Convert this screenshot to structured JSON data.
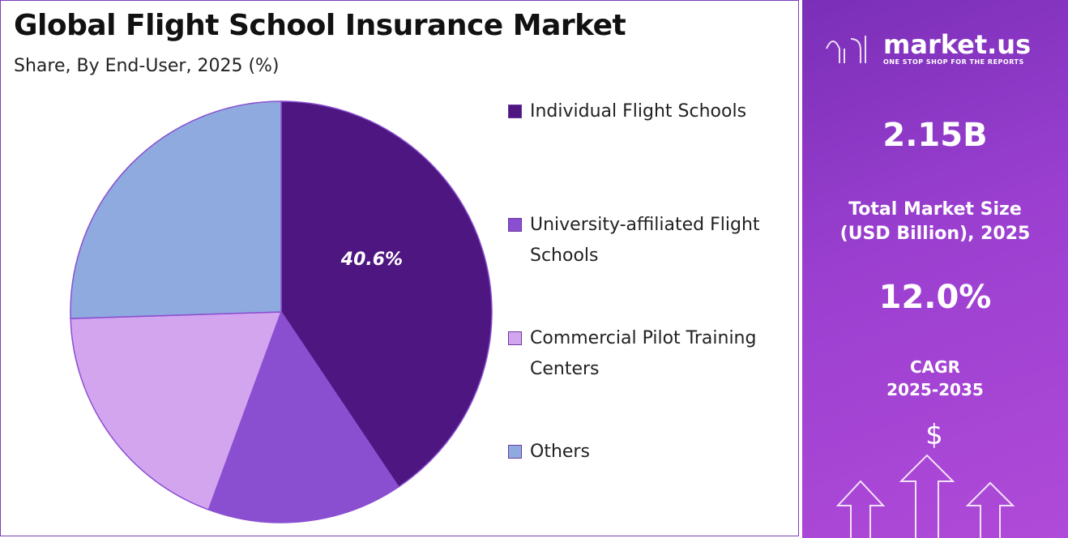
{
  "chart_data": {
    "type": "pie",
    "title": "Global Flight School Insurance Market",
    "subtitle": "Share, By End-User, 2025 (%)",
    "categories": [
      "Individual Flight Schools",
      "University-affiliated Flight Schools",
      "Commercial Pilot Training Centers",
      "Others"
    ],
    "values": [
      40.6,
      15.0,
      18.9,
      25.5
    ],
    "value_labels": [
      "40.6%",
      null,
      null,
      null
    ],
    "colors": [
      "#4e1680",
      "#8a4fd0",
      "#d4a5ef",
      "#8eaadf"
    ]
  },
  "sidebar": {
    "logo": "market.us",
    "tagline": "ONE STOP SHOP FOR THE REPORTS",
    "market_size": "2.15B",
    "market_size_label": [
      "Total Market Size",
      "(USD Billion), 2025"
    ],
    "cagr": "12.0%",
    "cagr_label": [
      "CAGR",
      "2025-2035"
    ]
  }
}
